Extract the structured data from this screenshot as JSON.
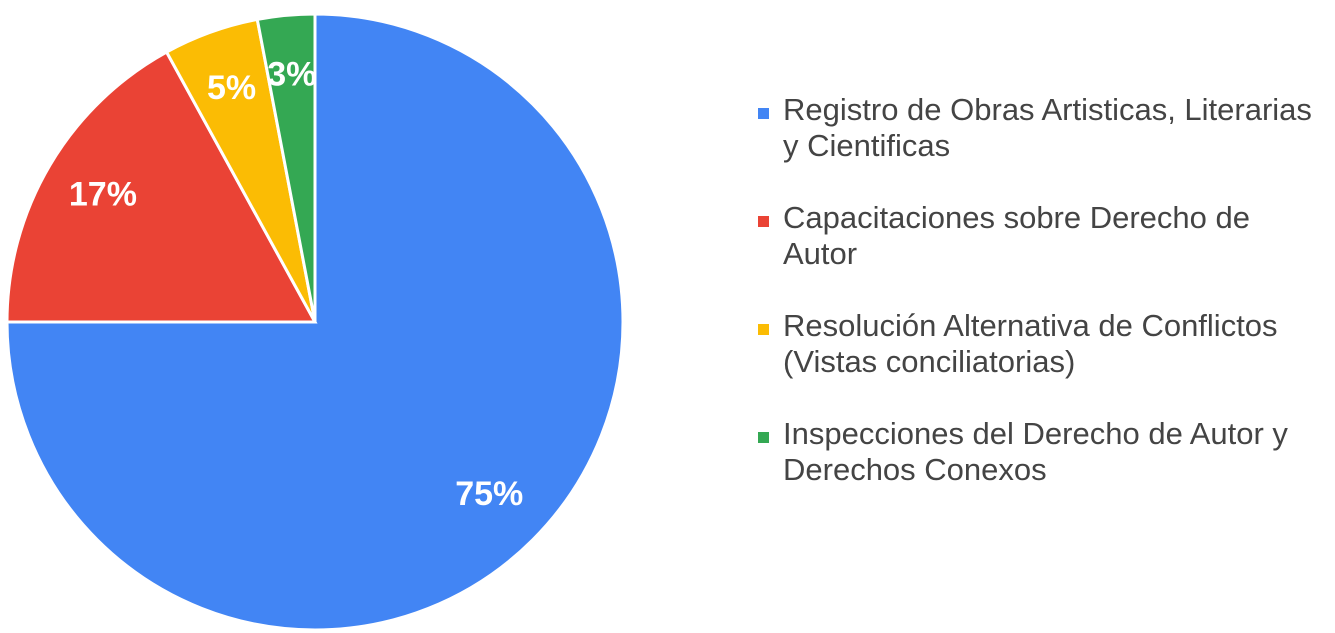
{
  "chart_data": {
    "type": "pie",
    "categories": [
      "Registro de Obras Artisticas, Literarias y Cientificas",
      "Capacitaciones sobre Derecho de Autor",
      "Resolución Alternativa de Conflictos (Vistas conciliatorias)",
      "Inspecciones del Derecho de Autor y Derechos Conexos"
    ],
    "values": [
      75,
      17,
      5,
      3
    ],
    "value_labels": [
      "75%",
      "17%",
      "5%",
      "3%"
    ],
    "colors": [
      "#4285f4",
      "#ea4335",
      "#fbbc04",
      "#34a853"
    ],
    "legend": "right"
  }
}
